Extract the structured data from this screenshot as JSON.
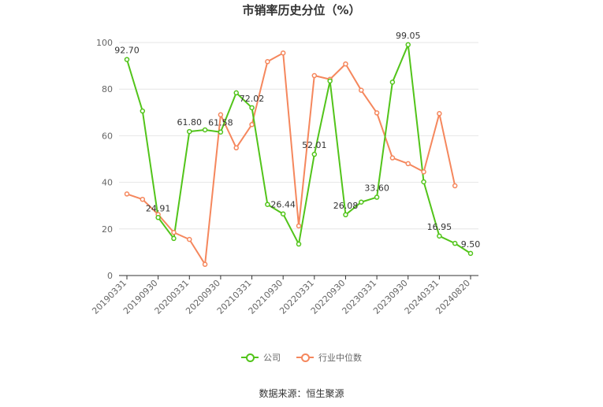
{
  "chart_data": {
    "type": "line",
    "title": "市销率历史分位（%）",
    "xlabel": "",
    "ylabel": "",
    "ylim": [
      0,
      100
    ],
    "yticks": [
      0,
      20,
      40,
      60,
      80,
      100
    ],
    "grid": true,
    "legend_position": "bottom",
    "x": [
      "20190331",
      "20190630",
      "20190930",
      "20191231",
      "20200331",
      "20200630",
      "20200930",
      "20201231",
      "20210331",
      "20210630",
      "20210930",
      "20211231",
      "20220331",
      "20220630",
      "20220930",
      "20221231",
      "20230331",
      "20230630",
      "20230930",
      "20231231",
      "20240331",
      "20240630",
      "20240820"
    ],
    "x_tick_labels": [
      "20190331",
      "20190930",
      "20200331",
      "20200930",
      "20210331",
      "20210930",
      "20220331",
      "20220930",
      "20230331",
      "20230930",
      "20240331",
      "20240820"
    ],
    "series": [
      {
        "name": "公司",
        "color": "#52c41a",
        "values": [
          92.7,
          70.6,
          24.91,
          15.9,
          61.8,
          62.5,
          61.58,
          78.4,
          72.02,
          30.5,
          26.44,
          13.5,
          52.01,
          83.5,
          26.08,
          31.5,
          33.6,
          83.0,
          99.05,
          40.2,
          16.95,
          13.8,
          9.5
        ],
        "data_labels": {
          "0": "92.70",
          "2": "24.91",
          "4": "61.80",
          "6": "61.58",
          "8": "72.02",
          "10": "26.44",
          "12": "52.01",
          "14": "26.08",
          "16": "33.60",
          "18": "99.05",
          "20": "16.95",
          "22": "9.50"
        }
      },
      {
        "name": "行业中位数",
        "color": "#f5875d",
        "values": [
          35.0,
          32.7,
          26.2,
          18.5,
          15.5,
          4.8,
          69.0,
          54.8,
          64.8,
          91.8,
          95.5,
          21.3,
          85.8,
          84.2,
          90.8,
          79.5,
          69.8,
          50.5,
          48.0,
          44.5,
          69.5,
          38.5,
          null
        ]
      }
    ]
  },
  "source": "数据来源：恒生聚源"
}
